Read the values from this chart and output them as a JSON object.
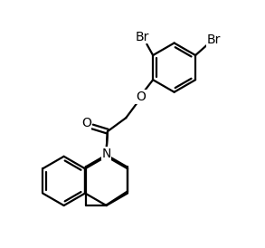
{
  "bg_color": "#ffffff",
  "atom_color": "#000000",
  "bond_color": "#000000",
  "bond_lw": 1.6,
  "font_size": 10,
  "fig_width": 2.93,
  "fig_height": 2.74,
  "dpi": 100,
  "xlim": [
    -1.5,
    8.5
  ],
  "ylim": [
    -5.5,
    4.5
  ]
}
